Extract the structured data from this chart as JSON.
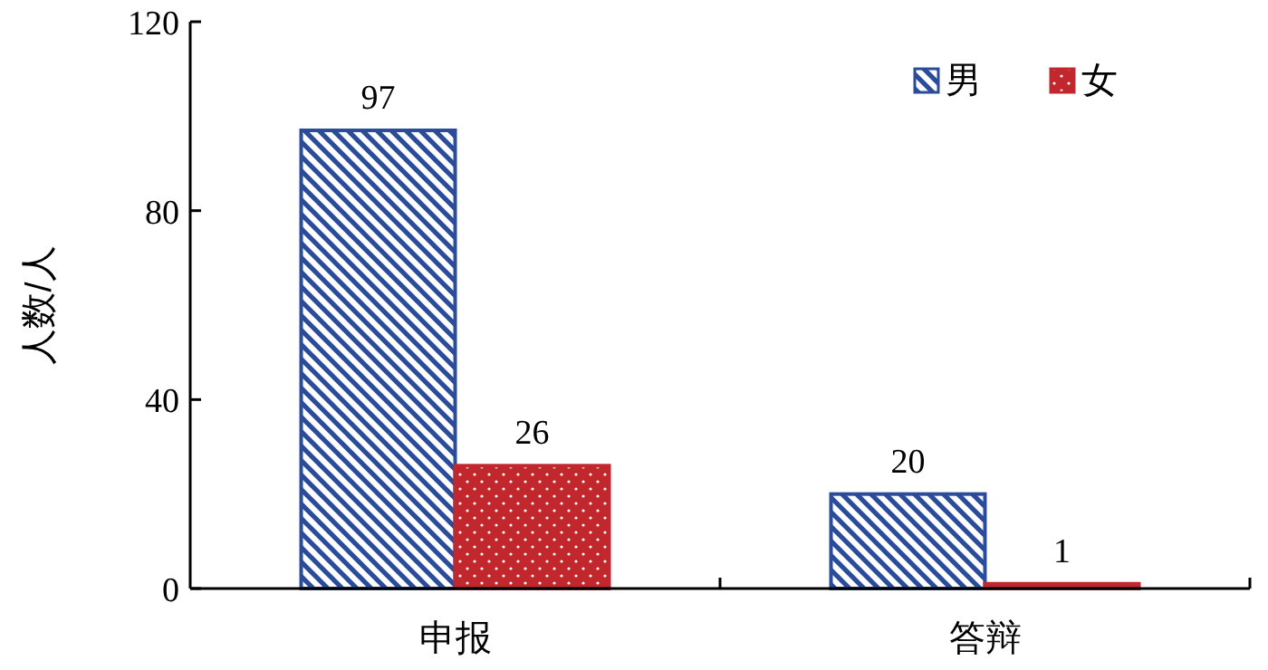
{
  "chart_data": {
    "type": "bar",
    "ylabel": "人数/人",
    "categories": [
      "申报",
      "答辩"
    ],
    "series": [
      {
        "name": "男",
        "color": "#2b4c9b",
        "values": [
          97,
          20
        ]
      },
      {
        "name": "女",
        "color": "#c1272d",
        "values": [
          26,
          1
        ]
      }
    ],
    "ylim": [
      0,
      120
    ],
    "yticks": [
      0,
      40,
      80,
      120
    ],
    "data_labels": true,
    "legend": "top right"
  }
}
